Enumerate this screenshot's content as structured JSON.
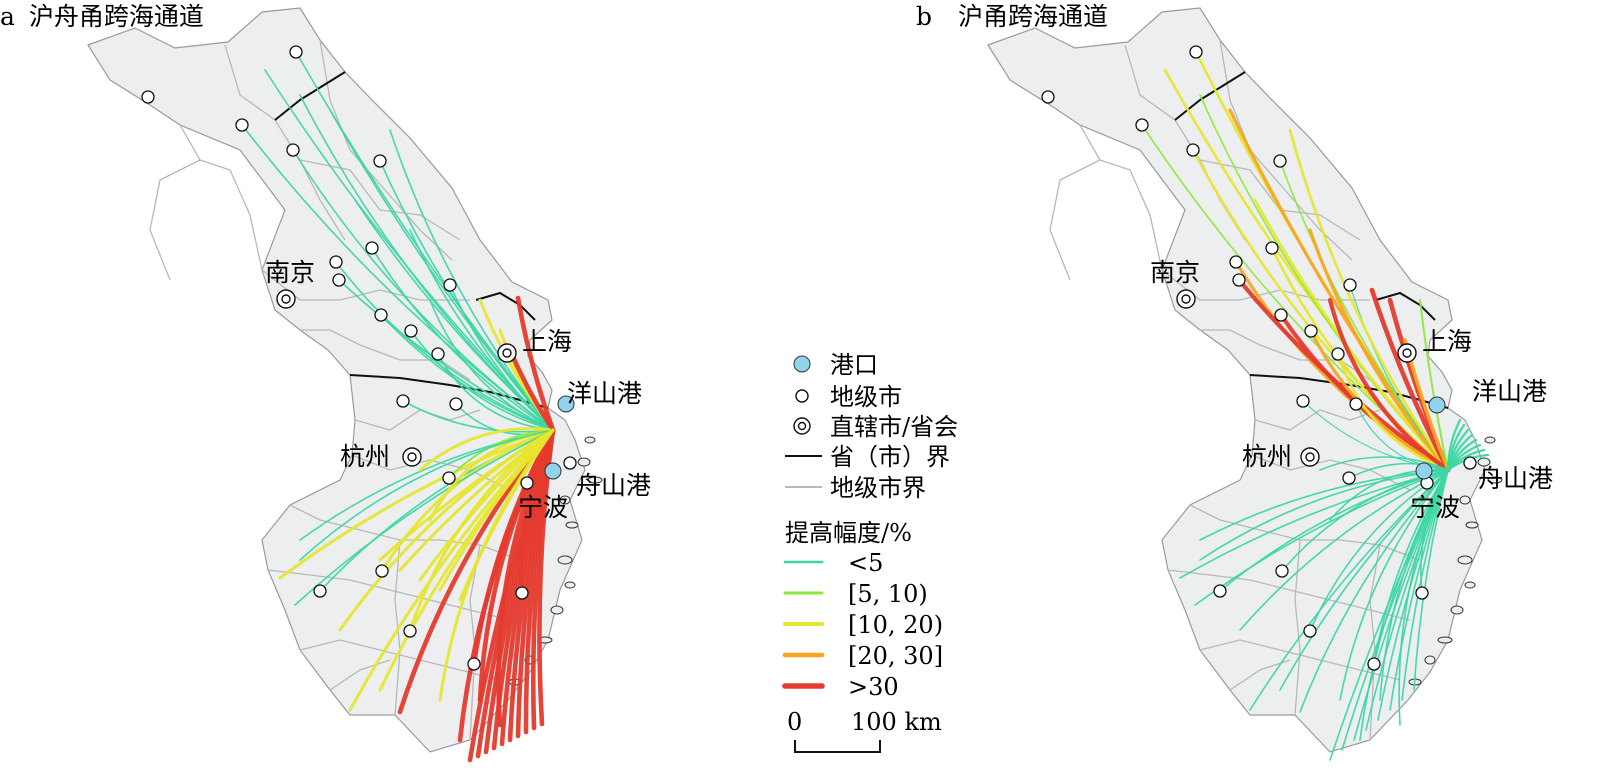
{
  "panels": [
    {
      "letter": "a",
      "title": "沪舟甬跨海通道",
      "cities": {
        "nanjing": "南京",
        "shanghai": "上海",
        "hangzhou": "杭州",
        "ningbo": "宁波"
      },
      "ports": {
        "yangshan": "洋山港",
        "zhoushan": "舟山港"
      }
    },
    {
      "letter": "b",
      "title": "沪甬跨海通道",
      "cities": {
        "nanjing": "南京",
        "shanghai": "上海",
        "hangzhou": "杭州",
        "ningbo": "宁波"
      },
      "ports": {
        "yangshan": "洋山港",
        "zhoushan": "舟山港"
      }
    }
  ],
  "legend": {
    "symbols": [
      {
        "label": "港口",
        "icon": "port-icon"
      },
      {
        "label": "地级市",
        "icon": "prefecture-city-icon"
      },
      {
        "label": "直辖市/省会",
        "icon": "capital-city-icon"
      },
      {
        "label": "省（市）界",
        "icon": "province-border-line"
      },
      {
        "label": "地级市界",
        "icon": "city-border-line"
      }
    ],
    "improvement_title": "提高幅度/%",
    "classes": [
      {
        "label": "<5",
        "color": "#3dd6a3"
      },
      {
        "label": "[5, 10)",
        "color": "#8ee83a"
      },
      {
        "label": "[10, 20)",
        "color": "#e6e62e"
      },
      {
        "label": "[20, 30]",
        "color": "#f5a623"
      },
      {
        "label": ">30",
        "color": "#e53a2e"
      }
    ],
    "scalebar": {
      "min": "0",
      "max": "100 km"
    }
  },
  "colors": {
    "land": "#eceef0",
    "province_border": "#111111",
    "city_border": "#b8b8b8",
    "port": "#8fd3ec"
  }
}
